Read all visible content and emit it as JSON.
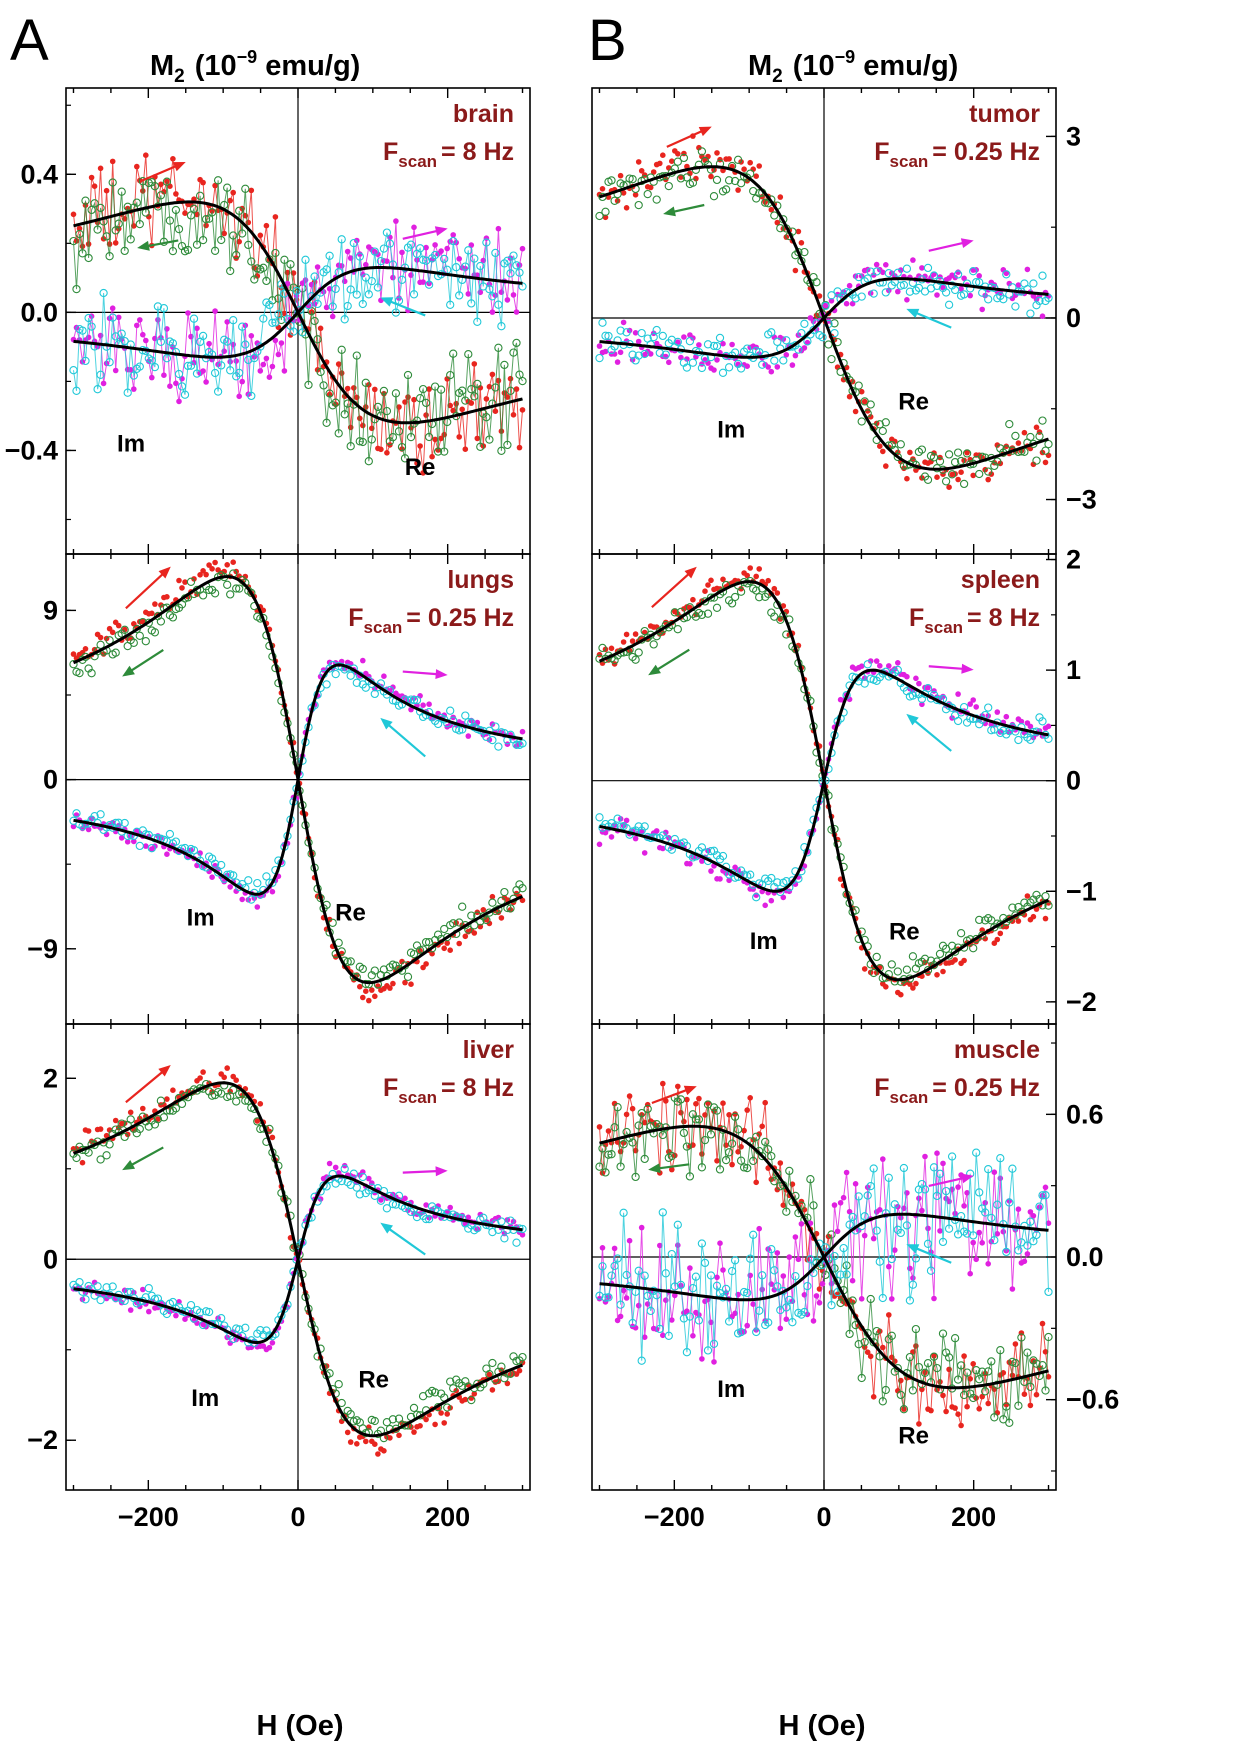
{
  "figure": {
    "panel_letters": [
      "A",
      "B"
    ],
    "column_header": {
      "prefix": "M",
      "sub": "2",
      "unit_pre": "(10",
      "unit_exp": "−9",
      "unit_post": " emu/g)"
    },
    "x_axis_label": "H  (Oe)",
    "curve_labels": {
      "im": "Im",
      "re": "Re"
    },
    "fscan_prefix": "F",
    "fscan_sub": "scan",
    "colors": {
      "re_scan_up": "#e8251f",
      "re_scan_down": "#2e8b3a",
      "im_scan_up": "#e020e0",
      "im_scan_down": "#20c8d8",
      "fit": "#000000",
      "label": "#8b1a1a"
    }
  },
  "chart_data": [
    {
      "type": "scatter",
      "panel": "A",
      "tissue": "brain",
      "fscan": "= 8 Hz",
      "xlim": [
        -310,
        310
      ],
      "ylim": [
        -0.7,
        0.65
      ],
      "yticks": [
        -0.4,
        0.0,
        0.4
      ],
      "ytick_labels": [
        "−0.4",
        "0.0",
        "0.4"
      ],
      "xticks": [
        -200,
        0,
        200
      ],
      "xtick_labels": [
        "−200",
        "0",
        "200"
      ],
      "fit": {
        "re_amplitude": 0.32,
        "re_peak_H": -145,
        "im_amplitude": 0.13,
        "im_peak_H": 110
      },
      "noise": {
        "re": 0.09,
        "im": 0.08
      }
    },
    {
      "type": "scatter",
      "panel": "A",
      "tissue": "lungs",
      "fscan": "= 0.25 Hz",
      "xlim": [
        -310,
        310
      ],
      "ylim": [
        -13,
        12
      ],
      "yticks": [
        -9,
        0,
        9
      ],
      "ytick_labels": [
        "−9",
        "0",
        "9"
      ],
      "xticks": [
        -200,
        0,
        200
      ],
      "xtick_labels": [
        "−200",
        "0",
        "200"
      ],
      "fit": {
        "re_amplitude": 10.8,
        "re_peak_H": -95,
        "im_amplitude": 6.1,
        "im_peak_H": 55
      },
      "noise": {
        "re": 0.45,
        "im": 0.35
      }
    },
    {
      "type": "scatter",
      "panel": "A",
      "tissue": "liver",
      "fscan": "= 8 Hz",
      "xlim": [
        -310,
        310
      ],
      "ylim": [
        -2.55,
        2.6
      ],
      "yticks": [
        -2,
        0,
        2
      ],
      "ytick_labels": [
        "−2",
        "0",
        "2"
      ],
      "xticks": [
        -200,
        0,
        200
      ],
      "xtick_labels": [
        "−200",
        "0",
        "200"
      ],
      "fit": {
        "re_amplitude": 1.95,
        "re_peak_H": -100,
        "im_amplitude": 0.92,
        "im_peak_H": 55
      },
      "noise": {
        "re": 0.09,
        "im": 0.07
      }
    },
    {
      "type": "scatter",
      "panel": "B",
      "tissue": "tumor",
      "fscan": "= 0.25 Hz",
      "xlim": [
        -310,
        310
      ],
      "ylim": [
        -3.9,
        3.8
      ],
      "yticks": [
        -3,
        0,
        3
      ],
      "ytick_labels": [
        "−3",
        "0",
        "3"
      ],
      "xticks": [
        -200,
        0,
        200
      ],
      "xtick_labels": [
        "−200",
        "0",
        "200"
      ],
      "fit": {
        "re_amplitude": 2.5,
        "re_peak_H": -150,
        "im_amplitude": 0.65,
        "im_peak_H": 100
      },
      "noise": {
        "re": 0.22,
        "im": 0.2
      }
    },
    {
      "type": "scatter",
      "panel": "B",
      "tissue": "spleen",
      "fscan": "= 8 Hz",
      "xlim": [
        -310,
        310
      ],
      "ylim": [
        -2.2,
        2.05
      ],
      "yticks": [
        -2,
        -1,
        0,
        1,
        2
      ],
      "ytick_labels": [
        "−2",
        "−1",
        "0",
        "1",
        "2"
      ],
      "xticks": [
        -200,
        0,
        200
      ],
      "xtick_labels": [
        "−200",
        "0",
        "200"
      ],
      "fit": {
        "re_amplitude": 1.8,
        "re_peak_H": -100,
        "im_amplitude": 1.0,
        "im_peak_H": 65
      },
      "noise": {
        "re": 0.08,
        "im": 0.07
      }
    },
    {
      "type": "scatter",
      "panel": "B",
      "tissue": "muscle",
      "fscan": "= 0.25 Hz",
      "xlim": [
        -310,
        310
      ],
      "ylim": [
        -0.98,
        0.98
      ],
      "yticks": [
        -0.6,
        0.0,
        0.6
      ],
      "ytick_labels": [
        "−0.6",
        "0.0",
        "0.6"
      ],
      "xticks": [
        -200,
        0,
        200
      ],
      "xtick_labels": [
        "−200",
        "0",
        "200"
      ],
      "fit": {
        "re_amplitude": 0.55,
        "re_peak_H": -175,
        "im_amplitude": 0.18,
        "im_peak_H": 105
      },
      "noise": {
        "re": 0.11,
        "im": 0.17
      }
    }
  ]
}
